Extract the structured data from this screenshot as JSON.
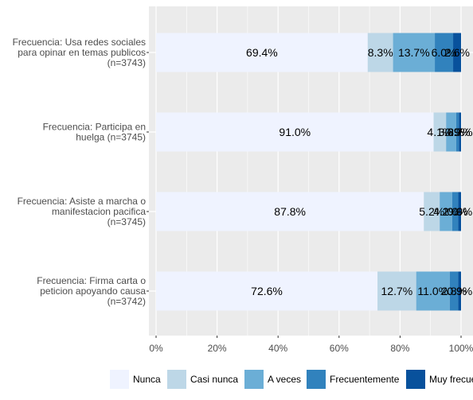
{
  "chart_data": {
    "type": "bar",
    "orientation": "horizontal",
    "stacked": true,
    "categories": [
      [
        "Frecuencia: Usa redes sociales",
        "para opinar en temas publicos",
        "(n=3743)"
      ],
      [
        "Frecuencia: Participa en",
        "huelga (n=3745)"
      ],
      [
        "Frecuencia: Asiste a marcha o",
        "manifestacion pacifica",
        "(n=3745)"
      ],
      [
        "Frecuencia: Firma carta o",
        "peticion apoyando causa",
        "(n=3742)"
      ]
    ],
    "series": [
      {
        "name": "Nunca",
        "color": "#eff3ff",
        "values": [
          69.4,
          91.0,
          87.8,
          72.6
        ],
        "labels": [
          "69.4%",
          "91.0%",
          "87.8%",
          "72.6%"
        ]
      },
      {
        "name": "Casi nunca",
        "color": "#bdd7e7",
        "values": [
          8.3,
          4.1,
          5.2,
          12.7
        ],
        "labels": [
          "8.3%",
          "4.1%",
          "5.2%",
          "12.7%"
        ]
      },
      {
        "name": "A veces",
        "color": "#6baed6",
        "values": [
          13.7,
          3.3,
          4.1,
          11.0
        ],
        "labels": [
          "13.7%",
          "3.3%",
          "4.1%",
          "11.0%"
        ]
      },
      {
        "name": "Frecuentemente",
        "color": "#3182bd",
        "values": [
          6.0,
          0.9,
          2.0,
          2.8
        ],
        "labels": [
          "6.0%",
          "0.9%",
          "2.0%",
          "2.8%"
        ]
      },
      {
        "name": "Muy frecuentemente",
        "color": "#08519c",
        "values": [
          2.6,
          0.7,
          0.9,
          0.9
        ],
        "labels": [
          "2.6%",
          "0.7%",
          "0.9%",
          "0.9%"
        ]
      }
    ],
    "xlim": [
      0,
      100
    ],
    "x_ticks": [
      "0%",
      "20%",
      "40%",
      "60%",
      "80%",
      "100%"
    ],
    "grid": true,
    "legend_position": "bottom",
    "background": "#ebebeb",
    "grid_color": "#ffffff"
  }
}
